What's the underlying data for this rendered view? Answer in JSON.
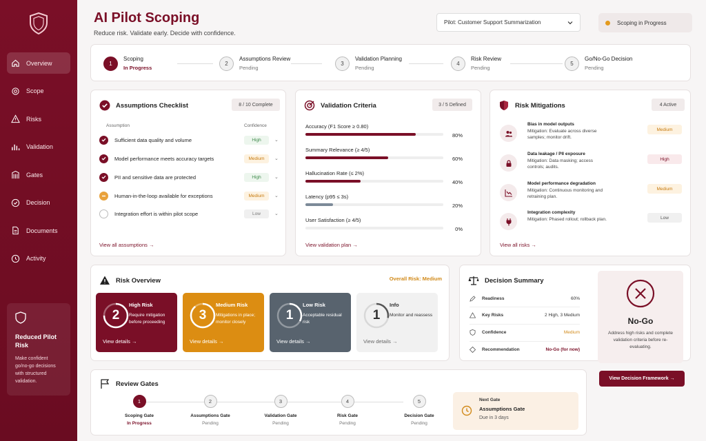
{
  "app": {
    "title": "AI Pilot Scoping",
    "subtitle": "Reduce risk. Validate early. Decide with confidence.",
    "pilot_select": "Pilot: Customer Support Summarization",
    "status": "Scoping in Progress"
  },
  "sidebar": {
    "items": [
      {
        "label": "Overview",
        "icon": "home-icon"
      },
      {
        "label": "Scope",
        "icon": "target-icon"
      },
      {
        "label": "Risks",
        "icon": "warning-icon"
      },
      {
        "label": "Validation",
        "icon": "bar-chart-icon"
      },
      {
        "label": "Gates",
        "icon": "gate-icon"
      },
      {
        "label": "Decision",
        "icon": "check-circle-icon"
      },
      {
        "label": "Documents",
        "icon": "document-icon"
      },
      {
        "label": "Activity",
        "icon": "clock-icon"
      }
    ],
    "promo": {
      "title": "Reduced Pilot Risk",
      "desc": "Make confident go/no-go decisions with structured validation."
    }
  },
  "stepper": [
    {
      "num": "1",
      "name": "Scoping",
      "status": "In Progress"
    },
    {
      "num": "2",
      "name": "Assumptions Review",
      "status": "Pending"
    },
    {
      "num": "3",
      "name": "Validation Planning",
      "status": "Pending"
    },
    {
      "num": "4",
      "name": "Risk Review",
      "status": "Pending"
    },
    {
      "num": "5",
      "name": "Go/No-Go Decision",
      "status": "Pending"
    }
  ],
  "assumptions": {
    "title": "Assumptions Checklist",
    "badge": "8 / 10 Complete",
    "col_assumption": "Assumption",
    "col_confidence": "Confidence",
    "rows": [
      {
        "text": "Sufficient data quality and volume",
        "confidence": "High"
      },
      {
        "text": "Model performance meets accuracy targets",
        "confidence": "Medium"
      },
      {
        "text": "PII and sensitive data are protected",
        "confidence": "High"
      },
      {
        "text": "Human-in-the-loop available for exceptions",
        "confidence": "Medium"
      },
      {
        "text": "Integration effort is within pilot scope",
        "confidence": "Low"
      }
    ],
    "link": "View all assumptions →"
  },
  "validation": {
    "title": "Validation Criteria",
    "badge": "3 / 5 Defined",
    "metrics": [
      {
        "label": "Accuracy (F1 Score ≥ 0.80)",
        "value": "80%",
        "pct": 80,
        "color": "#7a0f27"
      },
      {
        "label": "Summary Relevance (≥ 4/5)",
        "value": "60%",
        "pct": 60,
        "color": "#7a0f27"
      },
      {
        "label": "Hallucination Rate (≤ 2%)",
        "value": "40%",
        "pct": 40,
        "color": "#7a0f27"
      },
      {
        "label": "Latency (p95 ≤ 3s)",
        "value": "20%",
        "pct": 20,
        "color": "#7c8a98"
      },
      {
        "label": "User Satisfaction (≥ 4/5)",
        "value": "0%",
        "pct": 0,
        "color": "#7a0f27"
      }
    ],
    "link": "View validation plan →"
  },
  "mitigations": {
    "title": "Risk Mitigations",
    "badge": "4 Active",
    "items": [
      {
        "title": "Bias in model outputs",
        "desc": "Mitigation: Evaluate across diverse samples; monitor drift.",
        "severity": "Medium",
        "icon": "users-icon"
      },
      {
        "title": "Data leakage / PII exposure",
        "desc": "Mitigation: Data masking; access controls; audits.",
        "severity": "High",
        "icon": "lock-icon"
      },
      {
        "title": "Model performance degradation",
        "desc": "Mitigation: Continuous monitoring and retraining plan.",
        "severity": "Medium",
        "icon": "trend-icon"
      },
      {
        "title": "Integration complexity",
        "desc": "Mitigation: Phased rollout; rollback plan.",
        "severity": "Low",
        "icon": "plug-icon"
      }
    ],
    "link": "View all risks →"
  },
  "risk_overview": {
    "title": "Risk Overview",
    "overall": "Overall Risk: Medium",
    "tiles": [
      {
        "count": "2",
        "title": "High Risk",
        "desc": "Require mitigation before proceeding",
        "link": "View details →",
        "bg": "#7a0f27"
      },
      {
        "count": "3",
        "title": "Medium Risk",
        "desc": "Mitigations in place; monitor closely",
        "link": "View details →",
        "bg": "#dc8d12"
      },
      {
        "count": "1",
        "title": "Low Risk",
        "desc": "Acceptable residual risk",
        "link": "View details →",
        "bg": "#58636e"
      },
      {
        "count": "1",
        "title": "Info",
        "desc": "Monitor and reassess",
        "link": "View details →",
        "bg": "#f1f1f1"
      }
    ]
  },
  "decision": {
    "title": "Decision Summary",
    "rows": [
      {
        "label": "Readiness",
        "value": "60%",
        "icon": "edit-icon"
      },
      {
        "label": "Key Risks",
        "value": "2 High, 3 Medium",
        "icon": "warning-icon"
      },
      {
        "label": "Confidence",
        "value": "Medium",
        "icon": "shield-icon"
      },
      {
        "label": "Recommendation",
        "value": "No-Go (for now)",
        "icon": "diamond-icon"
      }
    ],
    "verdict": "No-Go",
    "verdict_desc": "Address high risks and complete validation criteria before re-evaluating.",
    "button": "View Decision Framework →"
  },
  "gates": {
    "title": "Review Gates",
    "items": [
      {
        "num": "1",
        "name": "Scoping Gate",
        "status": "In Progress"
      },
      {
        "num": "2",
        "name": "Assumptions Gate",
        "status": "Pending"
      },
      {
        "num": "3",
        "name": "Validation Gate",
        "status": "Pending"
      },
      {
        "num": "4",
        "name": "Risk Gate",
        "status": "Pending"
      },
      {
        "num": "5",
        "name": "Decision Gate",
        "status": "Pending"
      }
    ],
    "next_label": "Next Gate",
    "next_name": "Assumptions Gate",
    "next_due": "Due in 3 days"
  },
  "colors": {
    "brand": "#7a0f27",
    "medium": "#dc8d12",
    "high": "#7a0f27",
    "low": "#58636e",
    "success": "#3f8a4b"
  }
}
